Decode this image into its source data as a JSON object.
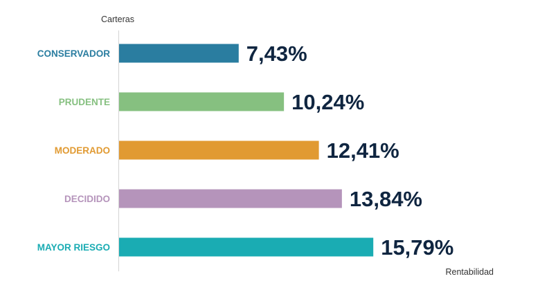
{
  "chart_data": {
    "type": "bar",
    "orientation": "horizontal",
    "ylabel": "Carteras",
    "xlabel": "Rentabilidad",
    "xlim": [
      0,
      21.5
    ],
    "grid": false,
    "categories": [
      "CONSERVADOR",
      "PRUDENTE",
      "MODERADO",
      "DECIDIDO",
      "MAYOR RIESGO"
    ],
    "values": [
      7.43,
      10.24,
      12.41,
      13.84,
      15.79
    ],
    "value_labels": [
      "7,43%",
      "10,24%",
      "12,41%",
      "13,84%",
      "15,79%"
    ],
    "colors": [
      "#2a7da0",
      "#86c080",
      "#e19a32",
      "#b594bb",
      "#1aacb3"
    ]
  }
}
